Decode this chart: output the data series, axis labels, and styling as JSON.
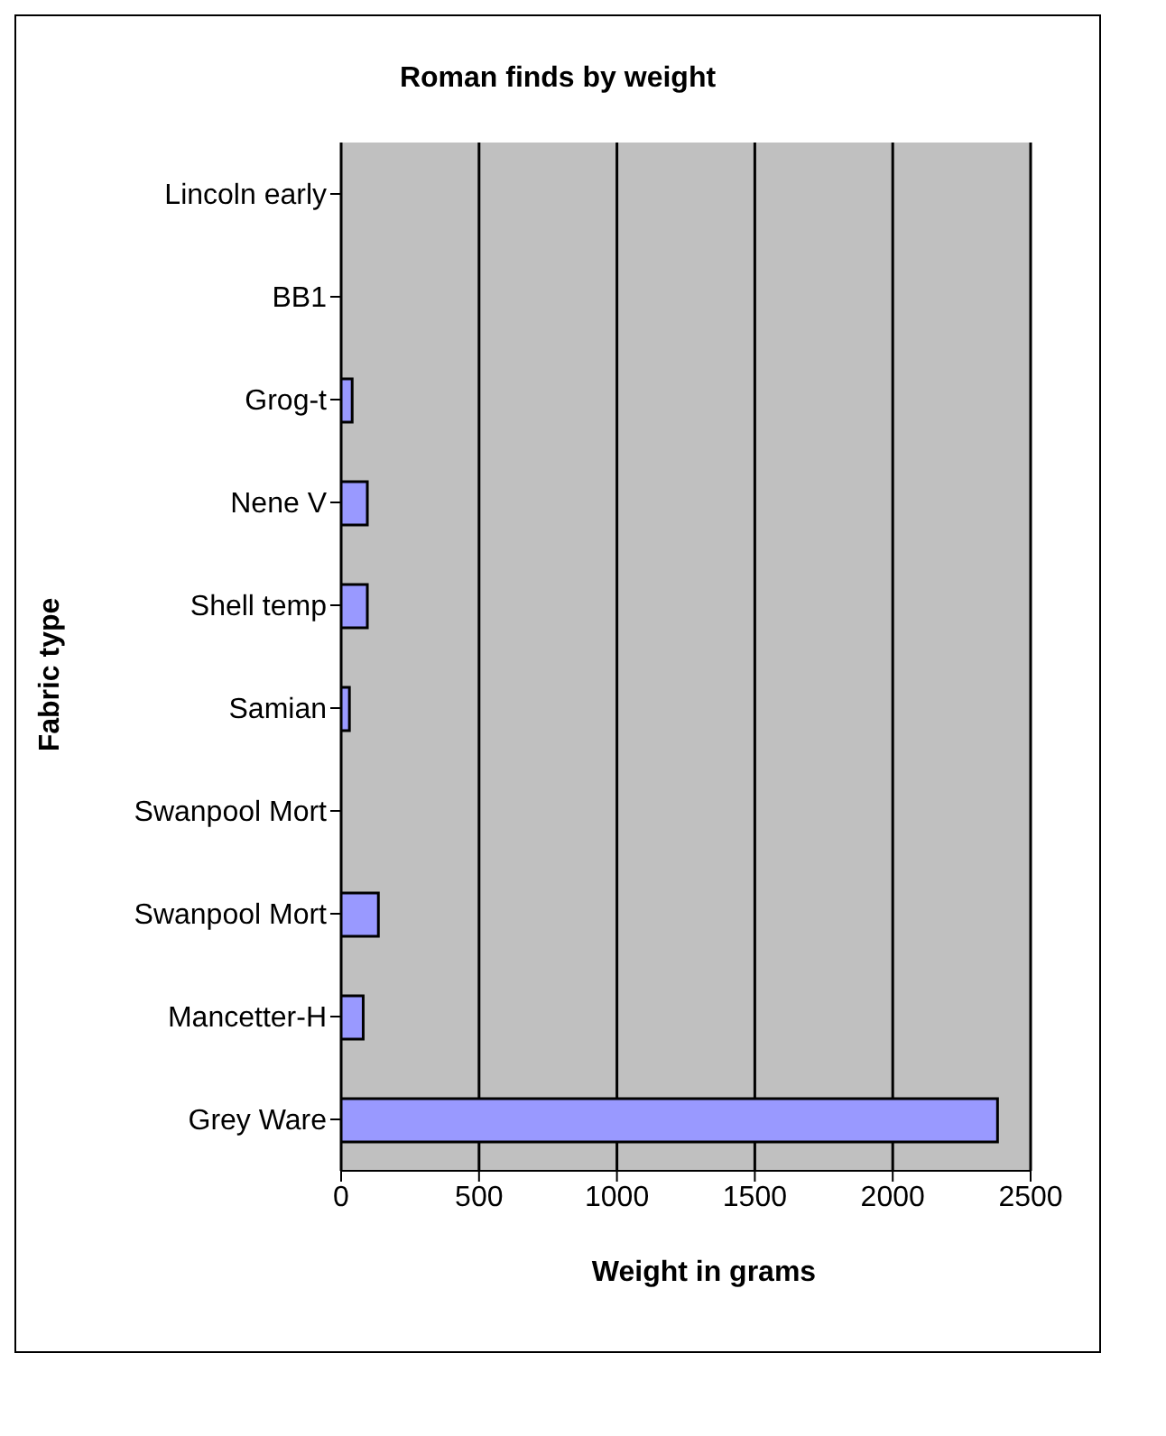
{
  "chart_data": {
    "type": "bar",
    "orientation": "horizontal",
    "title": "Roman finds by weight",
    "xlabel": "Weight in grams",
    "ylabel": "Fabric type",
    "categories": [
      "Lincoln early",
      "BB1",
      "Grog-t",
      "Nene V",
      "Shell temp",
      "Samian",
      "Swanpool Mort",
      "Swanpool Mort",
      "Mancetter-H",
      "Grey Ware"
    ],
    "values": [
      0,
      0,
      40,
      95,
      95,
      30,
      0,
      135,
      80,
      2380
    ],
    "color": "#9999ff",
    "xlim": [
      0,
      2500
    ],
    "xticks": [
      0,
      500,
      1000,
      1500,
      2000,
      2500
    ],
    "grid": "x",
    "legend": false
  }
}
